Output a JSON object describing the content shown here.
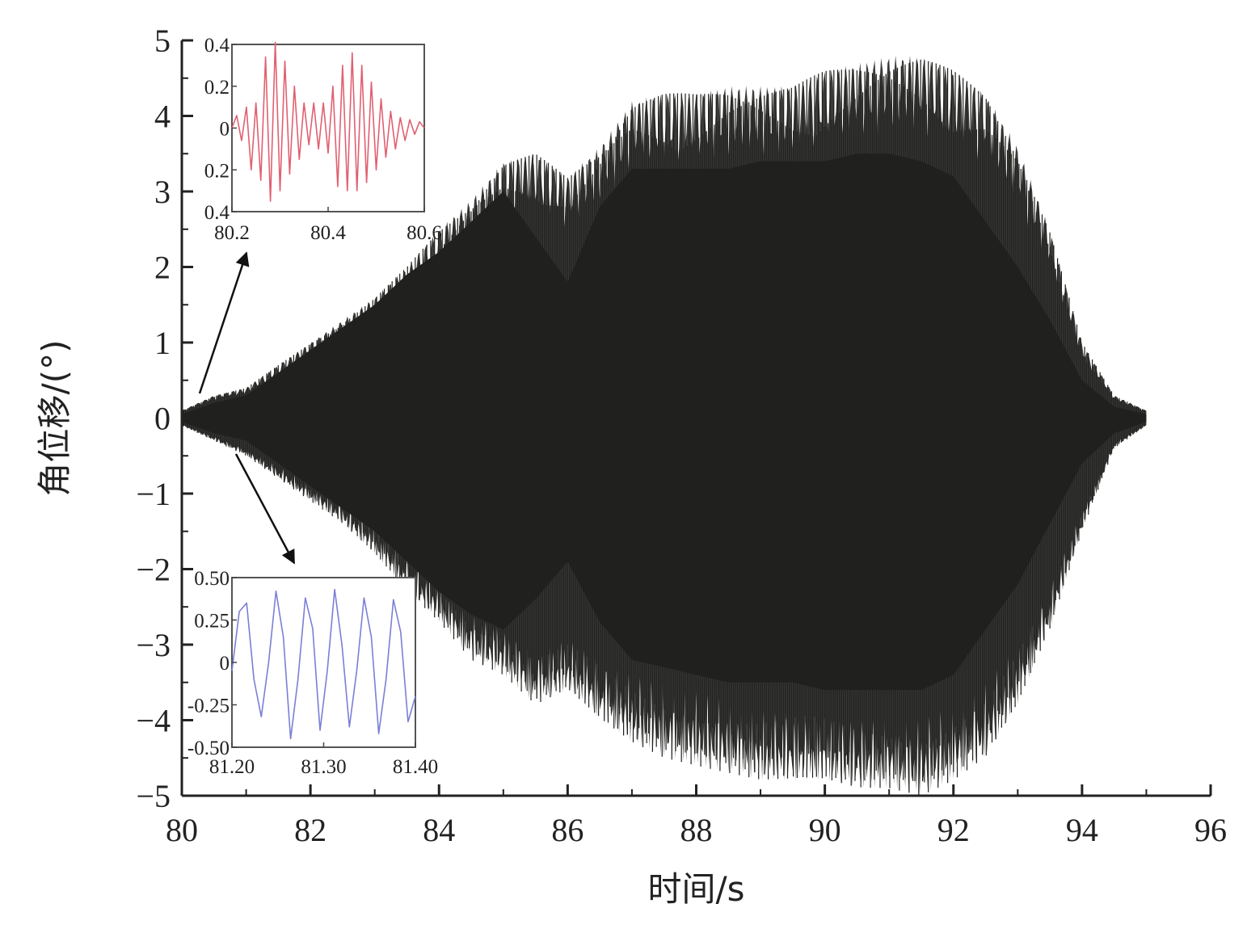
{
  "chart_data": [
    {
      "type": "line",
      "title": "",
      "xlabel": "时间/s",
      "ylabel": "角位移/(°)",
      "xlim": [
        80,
        96
      ],
      "ylim": [
        -5,
        5
      ],
      "x_ticks": [
        80,
        82,
        84,
        86,
        88,
        90,
        92,
        94,
        96
      ],
      "x_tick_labels": [
        "80",
        "82",
        "84",
        "86",
        "88",
        "90",
        "92",
        "94",
        "96"
      ],
      "y_ticks": [
        5,
        4,
        3,
        2,
        1,
        0,
        -1,
        -2,
        -3,
        -4,
        -5
      ],
      "y_tick_labels": [
        "5",
        "4",
        "3",
        "2",
        "1",
        "0",
        "−1",
        "−2",
        "−3",
        "−4",
        "−5"
      ],
      "grid": false,
      "series": [
        {
          "color": "#2b2b2b",
          "envelope": {
            "x": [
              80,
              80.5,
              81,
              81.5,
              82,
              82.5,
              83,
              83.5,
              84,
              84.5,
              85,
              85.5,
              86,
              86.5,
              87,
              87.5,
              88,
              88.5,
              89,
              89.5,
              90,
              90.5,
              91,
              91.5,
              92,
              92.5,
              93,
              93.5,
              94,
              94.5,
              95
            ],
            "upper": [
              0.1,
              0.3,
              0.4,
              0.7,
              1.0,
              1.3,
              1.6,
              2.0,
              2.5,
              2.9,
              3.4,
              3.5,
              3.2,
              3.6,
              4.2,
              4.3,
              4.3,
              4.4,
              4.4,
              4.4,
              4.6,
              4.7,
              4.8,
              4.8,
              4.6,
              4.3,
              3.6,
              2.5,
              1.0,
              0.3,
              0.1
            ],
            "lower": [
              -0.1,
              -0.3,
              -0.5,
              -0.8,
              -1.1,
              -1.4,
              -1.8,
              -2.3,
              -2.7,
              -3.2,
              -3.4,
              -3.8,
              -3.6,
              -4.0,
              -4.3,
              -4.5,
              -4.6,
              -4.7,
              -4.8,
              -4.8,
              -4.8,
              -4.9,
              -4.9,
              -5.0,
              -4.8,
              -4.5,
              -3.8,
              -2.8,
              -1.5,
              -0.4,
              -0.1
            ],
            "inner_upper": [
              0.05,
              0.2,
              0.3,
              0.6,
              0.9,
              1.2,
              1.5,
              1.9,
              2.2,
              2.6,
              3.0,
              2.4,
              1.8,
              2.8,
              3.3,
              3.3,
              3.3,
              3.3,
              3.4,
              3.4,
              3.4,
              3.5,
              3.5,
              3.4,
              3.2,
              2.6,
              2.0,
              1.3,
              0.5,
              0.15,
              0.05
            ],
            "inner_lower": [
              -0.05,
              -0.2,
              -0.3,
              -0.6,
              -0.9,
              -1.2,
              -1.5,
              -1.9,
              -2.3,
              -2.6,
              -2.8,
              -2.4,
              -1.9,
              -2.7,
              -3.2,
              -3.3,
              -3.4,
              -3.5,
              -3.5,
              -3.5,
              -3.6,
              -3.6,
              -3.6,
              -3.6,
              -3.4,
              -2.8,
              -2.2,
              -1.4,
              -0.6,
              -0.2,
              -0.05
            ]
          }
        }
      ]
    },
    {
      "type": "line",
      "xlim": [
        80.2,
        80.6
      ],
      "ylim": [
        -0.4,
        0.4
      ],
      "x_ticks": [
        80.2,
        80.4,
        80.6
      ],
      "x_tick_labels": [
        "80.2",
        "80.4",
        "80.6"
      ],
      "y_ticks": [
        0.4,
        0.2,
        0,
        -0.2,
        -0.4
      ],
      "y_tick_labels": [
        "0.4",
        "0.2",
        "0",
        "0.2",
        "0.4"
      ],
      "grid": false,
      "series": [
        {
          "color": "#e06070",
          "x": [
            80.2,
            80.21,
            80.22,
            80.23,
            80.24,
            80.25,
            80.26,
            80.27,
            80.28,
            80.29,
            80.3,
            80.31,
            80.32,
            80.33,
            80.34,
            80.35,
            80.36,
            80.37,
            80.38,
            80.39,
            80.4,
            80.41,
            80.42,
            80.43,
            80.44,
            80.45,
            80.46,
            80.47,
            80.48,
            80.49,
            80.5,
            80.51,
            80.52,
            80.53,
            80.54,
            80.55,
            80.56,
            80.57,
            80.58,
            80.59,
            80.6
          ],
          "y": [
            0.0,
            0.06,
            -0.06,
            0.1,
            -0.2,
            0.12,
            -0.25,
            0.34,
            -0.35,
            0.41,
            -0.3,
            0.32,
            -0.22,
            0.2,
            -0.15,
            0.12,
            -0.08,
            0.12,
            -0.1,
            0.12,
            -0.12,
            0.2,
            -0.28,
            0.3,
            -0.3,
            0.36,
            -0.3,
            0.3,
            -0.26,
            0.22,
            -0.2,
            0.14,
            -0.14,
            0.08,
            -0.1,
            0.05,
            -0.06,
            0.04,
            -0.03,
            0.03,
            0.0
          ]
        }
      ]
    },
    {
      "type": "line",
      "xlim": [
        81.2,
        81.4
      ],
      "ylim": [
        -0.5,
        0.5
      ],
      "x_ticks": [
        81.2,
        81.3,
        81.4
      ],
      "x_tick_labels": [
        "81.20",
        "81.30",
        "81.40"
      ],
      "y_ticks": [
        0.5,
        0.25,
        0,
        -0.25,
        -0.5
      ],
      "y_tick_labels": [
        "0.50",
        "0.25",
        "0",
        "-0.25",
        "-0.50"
      ],
      "grid": false,
      "series": [
        {
          "color": "#7b7fd6",
          "x": [
            81.2,
            81.208,
            81.216,
            81.224,
            81.232,
            81.24,
            81.248,
            81.256,
            81.264,
            81.272,
            81.28,
            81.288,
            81.296,
            81.304,
            81.312,
            81.32,
            81.328,
            81.336,
            81.344,
            81.352,
            81.36,
            81.368,
            81.376,
            81.384,
            81.392,
            81.4
          ],
          "y": [
            -0.05,
            0.3,
            0.35,
            -0.1,
            -0.32,
            0.0,
            0.42,
            0.15,
            -0.45,
            -0.1,
            0.38,
            0.2,
            -0.4,
            -0.05,
            0.43,
            0.1,
            -0.38,
            -0.05,
            0.38,
            0.15,
            -0.42,
            -0.1,
            0.37,
            0.18,
            -0.35,
            -0.2
          ]
        }
      ]
    }
  ]
}
